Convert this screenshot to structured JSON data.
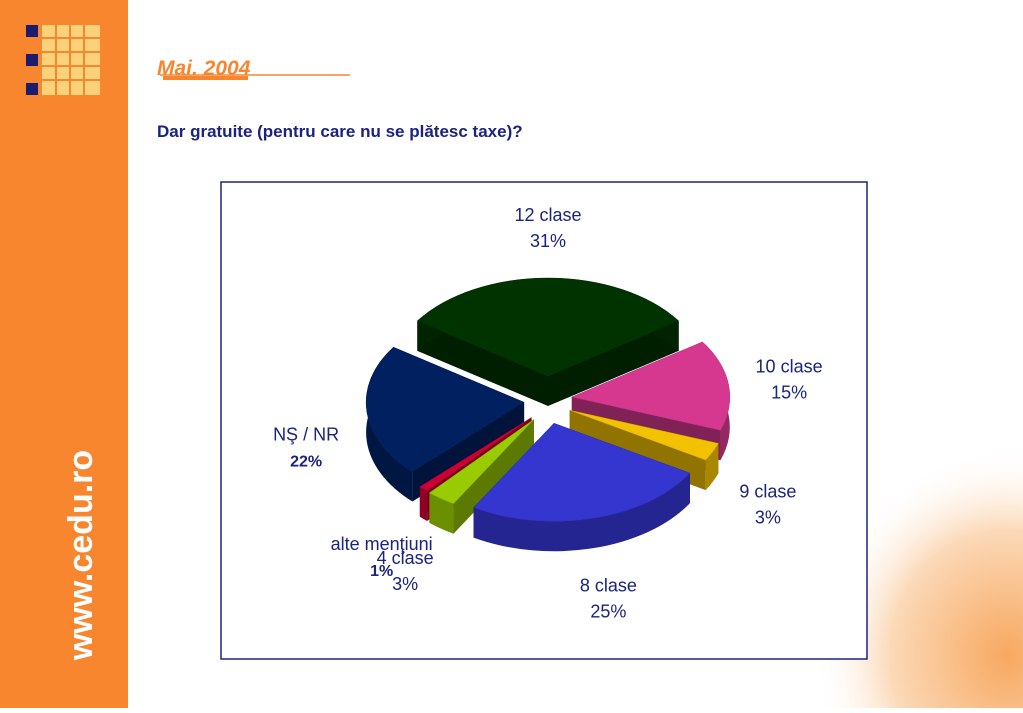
{
  "slide": {
    "date": "Mai. 2004",
    "website": "www.cedu.ro"
  },
  "chart_data": {
    "type": "pie",
    "title": "Dar gratuite (pentru care nu se plătesc taxe)?",
    "categories": [
      "12 clase",
      "10 clase",
      "9 clase",
      "8 clase",
      "4 clase",
      "alte menţiuni",
      "NŞ / NR"
    ],
    "values": [
      31,
      15,
      3,
      25,
      3,
      1,
      22
    ],
    "value_labels": [
      "31%",
      "15%",
      "3%",
      "25%",
      "3%",
      "1%",
      "22%"
    ],
    "colors": [
      "#003300",
      "#d6388f",
      "#f2c200",
      "#3535d0",
      "#99cc00",
      "#cc0033",
      "#002060"
    ]
  }
}
